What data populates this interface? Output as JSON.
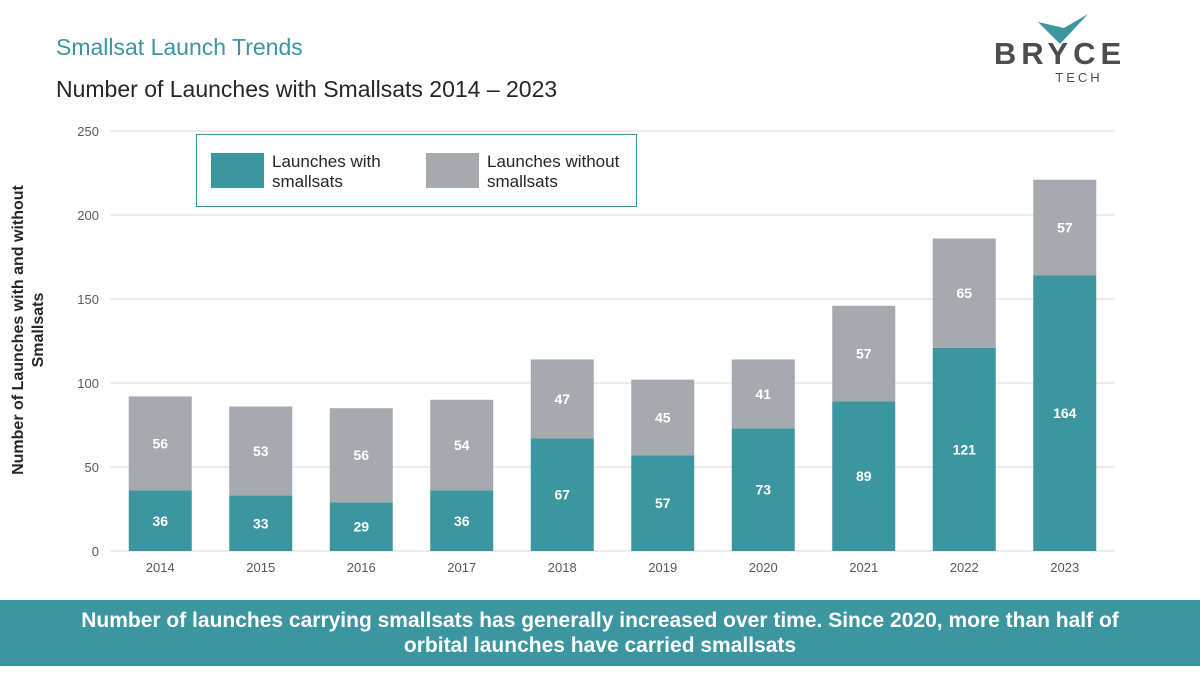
{
  "header": {
    "title": "Smallsat Launch Trends",
    "subtitle": "Number of Launches with Smallsats 2014 – 2023"
  },
  "logo": {
    "name": "BRYCE",
    "sub": "TECH",
    "color": "#4d4d4f",
    "accent": "#3b96a0"
  },
  "colors": {
    "with": "#3b96a0",
    "without": "#a6a9ad",
    "grid": "#d9d9d9"
  },
  "chart_data": {
    "type": "bar",
    "stacked": true,
    "categories": [
      "2014",
      "2015",
      "2016",
      "2017",
      "2018",
      "2019",
      "2020",
      "2021",
      "2022",
      "2023"
    ],
    "series": [
      {
        "name": "Launches with smallsats",
        "values": [
          36,
          33,
          29,
          36,
          67,
          57,
          73,
          89,
          121,
          164
        ]
      },
      {
        "name": "Launches without smallsats",
        "values": [
          56,
          53,
          56,
          54,
          47,
          45,
          41,
          57,
          65,
          57
        ]
      }
    ],
    "ylabel": "Number of Launches with and without Smallsats",
    "ylim": [
      0,
      250
    ],
    "yticks": [
      0,
      50,
      100,
      150,
      200,
      250
    ],
    "grid": true,
    "legend_position": "top-left"
  },
  "legend": {
    "with_lines": [
      "Launches with",
      "smallsats"
    ],
    "without_lines": [
      "Launches without",
      "smallsats"
    ]
  },
  "ylabel_lines": [
    "Number of Launches with and without",
    "Smallsats"
  ],
  "banner": {
    "line1": "Number of launches carrying smallsats has generally increased over time. Since 2020, more than half of",
    "line2": "orbital launches have carried smallsats"
  }
}
